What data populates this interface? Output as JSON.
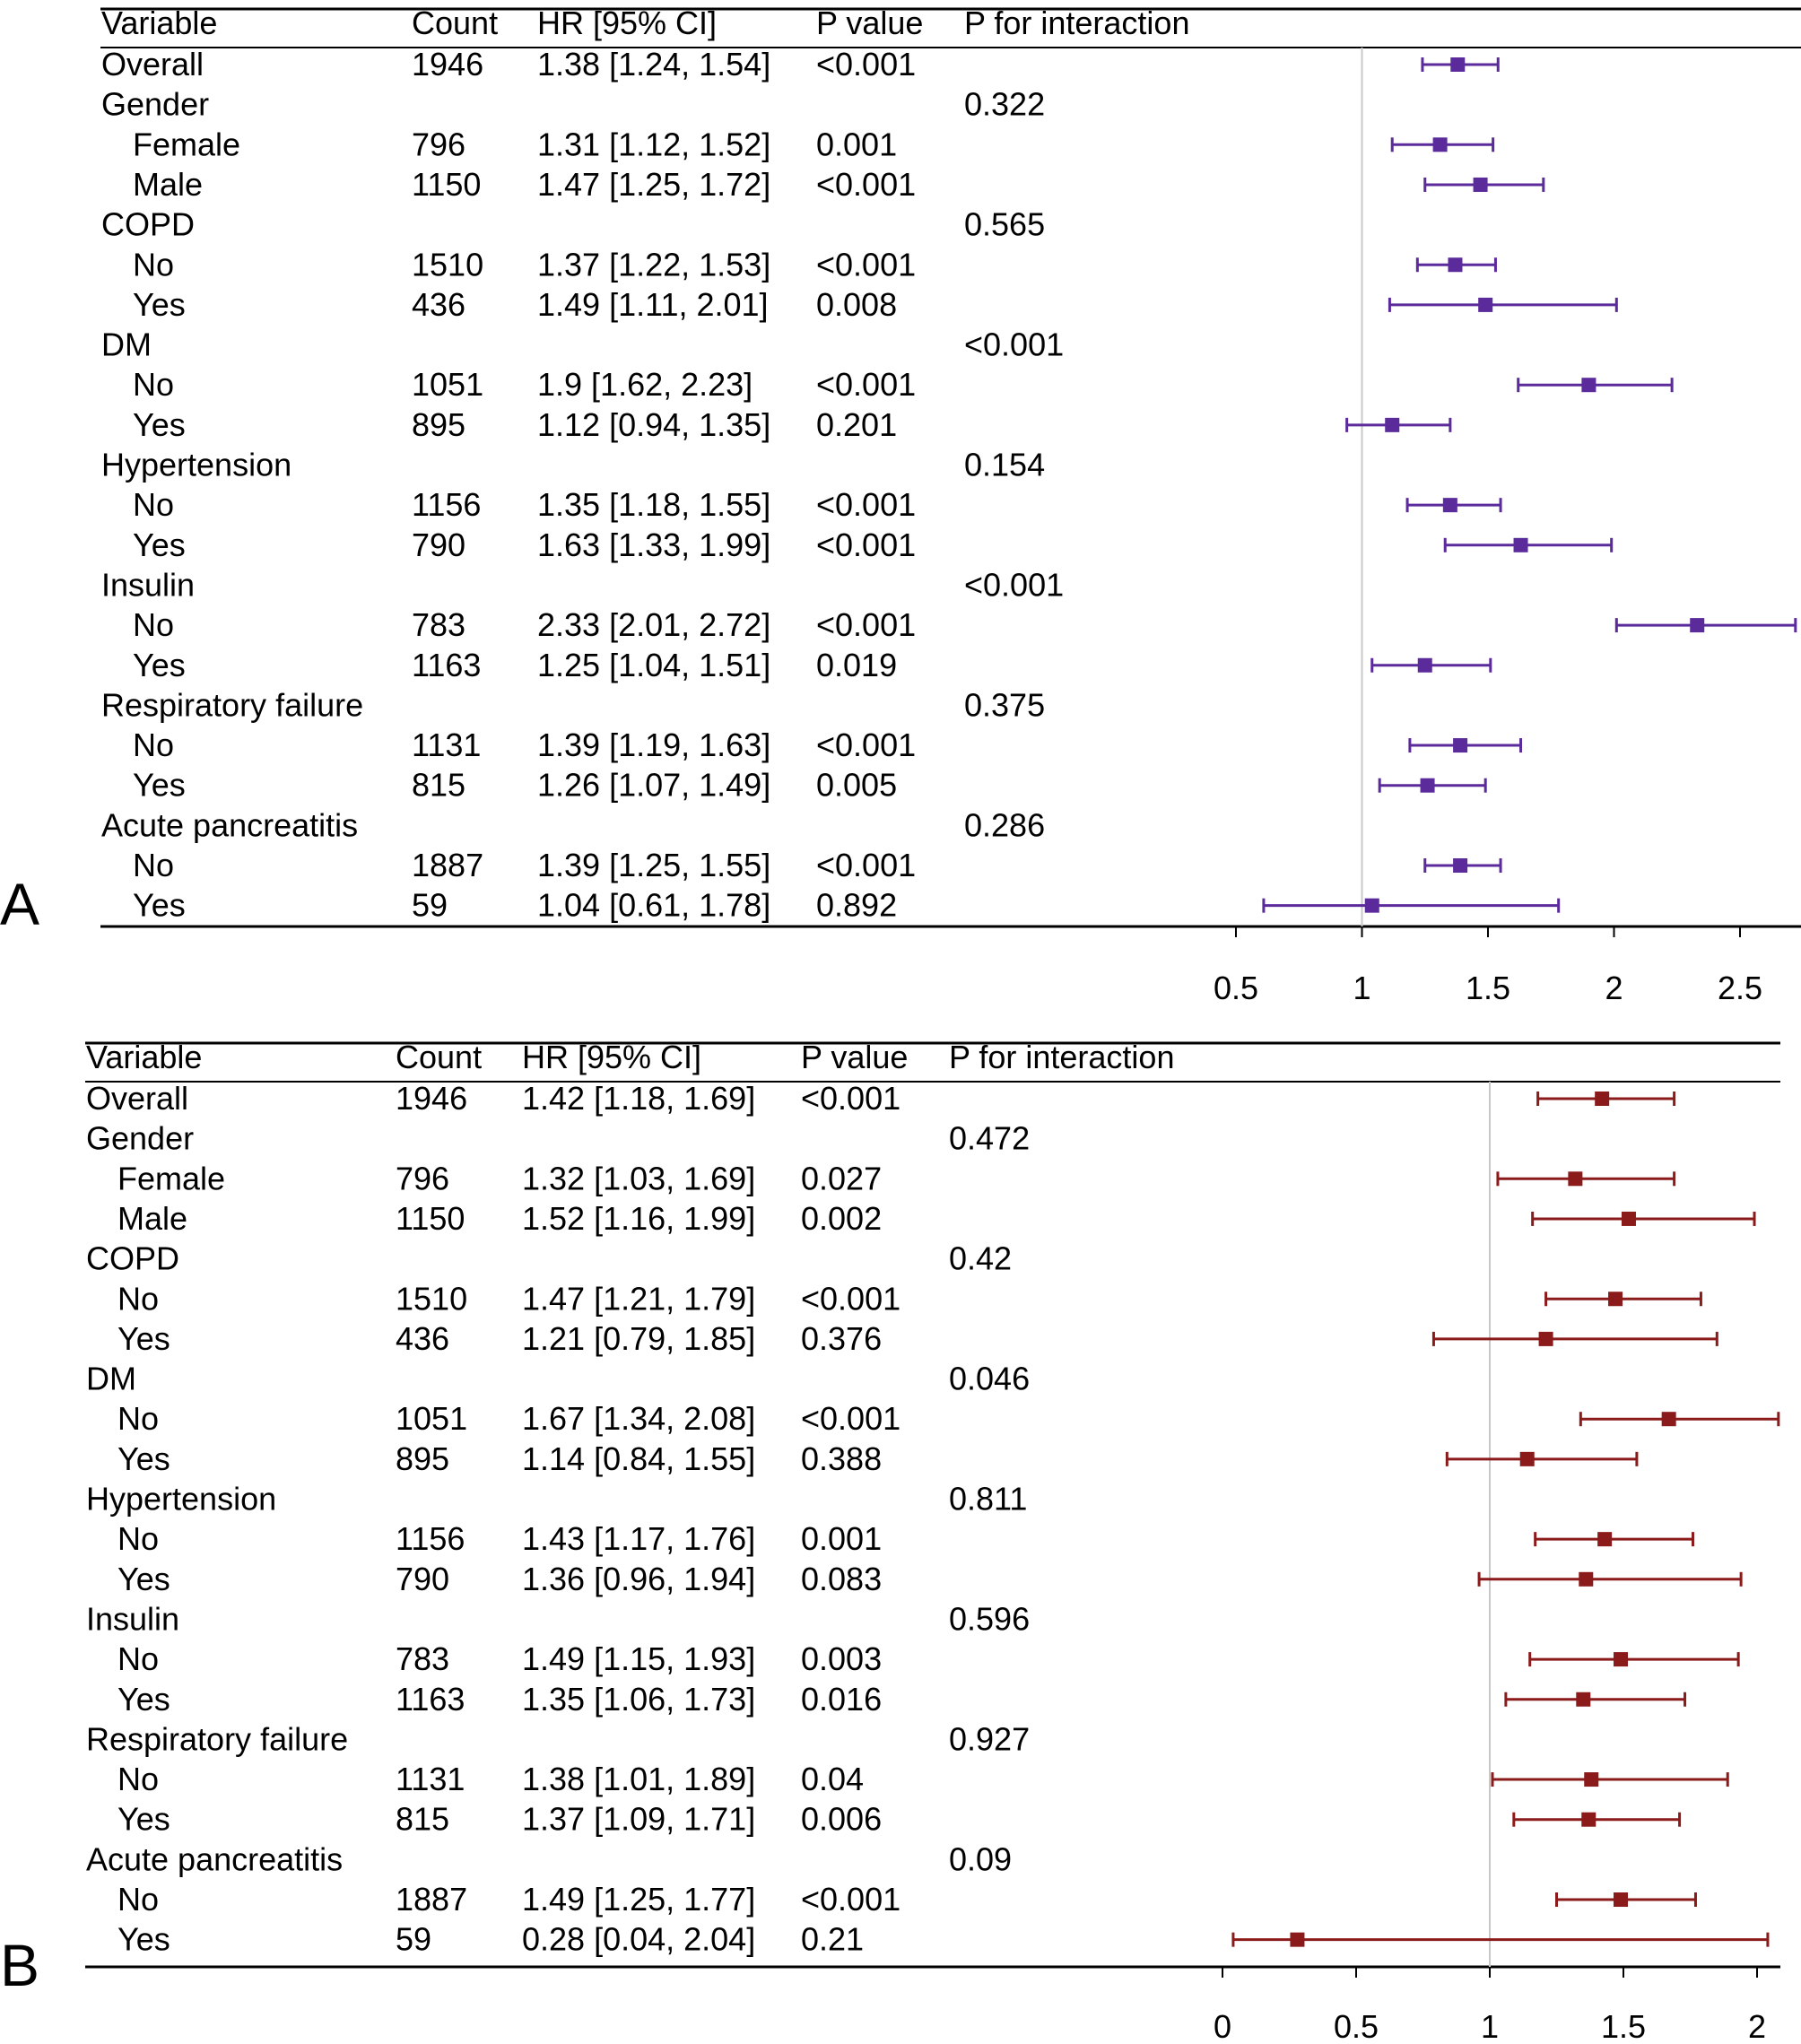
{
  "chart_data": [
    {
      "type": "forest",
      "panel_label": "A",
      "columns": [
        "Variable",
        "Count",
        "HR [95% CI]",
        "P value",
        "P for interaction"
      ],
      "reference_line": 1,
      "xlim": [
        0.5,
        2.75
      ],
      "ticks": [
        "0.5",
        "1",
        "1.5",
        "2",
        "2.5"
      ],
      "color": "#5B2A9B",
      "rows": [
        {
          "label": "Overall",
          "indent": false,
          "count": "1946",
          "hr_text": "1.38 [1.24, 1.54]",
          "p": "<0.001",
          "p_int": "",
          "hr": 1.38,
          "lo": 1.24,
          "hi": 1.54
        },
        {
          "label": "Gender",
          "indent": false,
          "count": "",
          "hr_text": "",
          "p": "",
          "p_int": "0.322"
        },
        {
          "label": "Female",
          "indent": true,
          "count": "796",
          "hr_text": "1.31 [1.12, 1.52]",
          "p": "0.001",
          "p_int": "",
          "hr": 1.31,
          "lo": 1.12,
          "hi": 1.52
        },
        {
          "label": "Male",
          "indent": true,
          "count": "1150",
          "hr_text": "1.47 [1.25, 1.72]",
          "p": "<0.001",
          "p_int": "",
          "hr": 1.47,
          "lo": 1.25,
          "hi": 1.72
        },
        {
          "label": "COPD",
          "indent": false,
          "count": "",
          "hr_text": "",
          "p": "",
          "p_int": "0.565"
        },
        {
          "label": "No",
          "indent": true,
          "count": "1510",
          "hr_text": "1.37 [1.22, 1.53]",
          "p": "<0.001",
          "p_int": "",
          "hr": 1.37,
          "lo": 1.22,
          "hi": 1.53
        },
        {
          "label": "Yes",
          "indent": true,
          "count": "436",
          "hr_text": "1.49 [1.11, 2.01]",
          "p": "0.008",
          "p_int": "",
          "hr": 1.49,
          "lo": 1.11,
          "hi": 2.01
        },
        {
          "label": "DM",
          "indent": false,
          "count": "",
          "hr_text": "",
          "p": "",
          "p_int": "<0.001"
        },
        {
          "label": "No",
          "indent": true,
          "count": "1051",
          "hr_text": "1.9 [1.62, 2.23]",
          "p": "<0.001",
          "p_int": "",
          "hr": 1.9,
          "lo": 1.62,
          "hi": 2.23
        },
        {
          "label": "Yes",
          "indent": true,
          "count": "895",
          "hr_text": "1.12 [0.94, 1.35]",
          "p": "0.201",
          "p_int": "",
          "hr": 1.12,
          "lo": 0.94,
          "hi": 1.35
        },
        {
          "label": "Hypertension",
          "indent": false,
          "count": "",
          "hr_text": "",
          "p": "",
          "p_int": "0.154"
        },
        {
          "label": "No",
          "indent": true,
          "count": "1156",
          "hr_text": "1.35 [1.18, 1.55]",
          "p": "<0.001",
          "p_int": "",
          "hr": 1.35,
          "lo": 1.18,
          "hi": 1.55
        },
        {
          "label": "Yes",
          "indent": true,
          "count": "790",
          "hr_text": "1.63 [1.33, 1.99]",
          "p": "<0.001",
          "p_int": "",
          "hr": 1.63,
          "lo": 1.33,
          "hi": 1.99
        },
        {
          "label": "Insulin",
          "indent": false,
          "count": "",
          "hr_text": "",
          "p": "",
          "p_int": "<0.001"
        },
        {
          "label": "No",
          "indent": true,
          "count": "783",
          "hr_text": "2.33 [2.01, 2.72]",
          "p": "<0.001",
          "p_int": "",
          "hr": 2.33,
          "lo": 2.01,
          "hi": 2.72
        },
        {
          "label": "Yes",
          "indent": true,
          "count": "1163",
          "hr_text": "1.25 [1.04, 1.51]",
          "p": "0.019",
          "p_int": "",
          "hr": 1.25,
          "lo": 1.04,
          "hi": 1.51
        },
        {
          "label": "Respiratory failure",
          "indent": false,
          "count": "",
          "hr_text": "",
          "p": "",
          "p_int": "0.375"
        },
        {
          "label": "No",
          "indent": true,
          "count": "1131",
          "hr_text": "1.39 [1.19, 1.63]",
          "p": "<0.001",
          "p_int": "",
          "hr": 1.39,
          "lo": 1.19,
          "hi": 1.63
        },
        {
          "label": "Yes",
          "indent": true,
          "count": "815",
          "hr_text": "1.26 [1.07, 1.49]",
          "p": "0.005",
          "p_int": "",
          "hr": 1.26,
          "lo": 1.07,
          "hi": 1.49
        },
        {
          "label": "Acute pancreatitis",
          "indent": false,
          "count": "",
          "hr_text": "",
          "p": "",
          "p_int": "0.286"
        },
        {
          "label": "No",
          "indent": true,
          "count": "1887",
          "hr_text": "1.39 [1.25, 1.55]",
          "p": "<0.001",
          "p_int": "",
          "hr": 1.39,
          "lo": 1.25,
          "hi": 1.55
        },
        {
          "label": "Yes",
          "indent": true,
          "count": "59",
          "hr_text": "1.04 [0.61, 1.78]",
          "p": "0.892",
          "p_int": "",
          "hr": 1.04,
          "lo": 0.61,
          "hi": 1.78
        }
      ]
    },
    {
      "type": "forest",
      "panel_label": "B",
      "columns": [
        "Variable",
        "Count",
        "HR [95% CI]",
        "P value",
        "P for interaction"
      ],
      "reference_line": 1,
      "xlim": [
        0,
        2.08
      ],
      "ticks": [
        "0",
        "0.5",
        "1",
        "1.5",
        "2"
      ],
      "color": "#8B1A1A",
      "rows": [
        {
          "label": "Overall",
          "indent": false,
          "count": "1946",
          "hr_text": "1.42 [1.18, 1.69]",
          "p": "<0.001",
          "p_int": "",
          "hr": 1.42,
          "lo": 1.18,
          "hi": 1.69
        },
        {
          "label": "Gender",
          "indent": false,
          "count": "",
          "hr_text": "",
          "p": "",
          "p_int": "0.472"
        },
        {
          "label": "Female",
          "indent": true,
          "count": "796",
          "hr_text": "1.32 [1.03, 1.69]",
          "p": "0.027",
          "p_int": "",
          "hr": 1.32,
          "lo": 1.03,
          "hi": 1.69
        },
        {
          "label": "Male",
          "indent": true,
          "count": "1150",
          "hr_text": "1.52 [1.16, 1.99]",
          "p": "0.002",
          "p_int": "",
          "hr": 1.52,
          "lo": 1.16,
          "hi": 1.99
        },
        {
          "label": "COPD",
          "indent": false,
          "count": "",
          "hr_text": "",
          "p": "",
          "p_int": "0.42"
        },
        {
          "label": "No",
          "indent": true,
          "count": "1510",
          "hr_text": "1.47 [1.21, 1.79]",
          "p": "<0.001",
          "p_int": "",
          "hr": 1.47,
          "lo": 1.21,
          "hi": 1.79
        },
        {
          "label": "Yes",
          "indent": true,
          "count": "436",
          "hr_text": "1.21 [0.79, 1.85]",
          "p": "0.376",
          "p_int": "",
          "hr": 1.21,
          "lo": 0.79,
          "hi": 1.85
        },
        {
          "label": "DM",
          "indent": false,
          "count": "",
          "hr_text": "",
          "p": "",
          "p_int": "0.046"
        },
        {
          "label": "No",
          "indent": true,
          "count": "1051",
          "hr_text": "1.67 [1.34, 2.08]",
          "p": "<0.001",
          "p_int": "",
          "hr": 1.67,
          "lo": 1.34,
          "hi": 2.08
        },
        {
          "label": "Yes",
          "indent": true,
          "count": "895",
          "hr_text": "1.14 [0.84, 1.55]",
          "p": "0.388",
          "p_int": "",
          "hr": 1.14,
          "lo": 0.84,
          "hi": 1.55
        },
        {
          "label": "Hypertension",
          "indent": false,
          "count": "",
          "hr_text": "",
          "p": "",
          "p_int": "0.811"
        },
        {
          "label": "No",
          "indent": true,
          "count": "1156",
          "hr_text": "1.43 [1.17, 1.76]",
          "p": "0.001",
          "p_int": "",
          "hr": 1.43,
          "lo": 1.17,
          "hi": 1.76
        },
        {
          "label": "Yes",
          "indent": true,
          "count": "790",
          "hr_text": "1.36 [0.96, 1.94]",
          "p": "0.083",
          "p_int": "",
          "hr": 1.36,
          "lo": 0.96,
          "hi": 1.94
        },
        {
          "label": "Insulin",
          "indent": false,
          "count": "",
          "hr_text": "",
          "p": "",
          "p_int": "0.596"
        },
        {
          "label": "No",
          "indent": true,
          "count": "783",
          "hr_text": "1.49 [1.15, 1.93]",
          "p": "0.003",
          "p_int": "",
          "hr": 1.49,
          "lo": 1.15,
          "hi": 1.93
        },
        {
          "label": "Yes",
          "indent": true,
          "count": "1163",
          "hr_text": "1.35 [1.06, 1.73]",
          "p": "0.016",
          "p_int": "",
          "hr": 1.35,
          "lo": 1.06,
          "hi": 1.73
        },
        {
          "label": "Respiratory failure",
          "indent": false,
          "count": "",
          "hr_text": "",
          "p": "",
          "p_int": "0.927"
        },
        {
          "label": "No",
          "indent": true,
          "count": "1131",
          "hr_text": "1.38 [1.01, 1.89]",
          "p": "0.04",
          "p_int": "",
          "hr": 1.38,
          "lo": 1.01,
          "hi": 1.89
        },
        {
          "label": "Yes",
          "indent": true,
          "count": "815",
          "hr_text": "1.37 [1.09, 1.71]",
          "p": "0.006",
          "p_int": "",
          "hr": 1.37,
          "lo": 1.09,
          "hi": 1.71
        },
        {
          "label": "Acute pancreatitis",
          "indent": false,
          "count": "",
          "hr_text": "",
          "p": "",
          "p_int": "0.09"
        },
        {
          "label": "No",
          "indent": true,
          "count": "1887",
          "hr_text": "1.49 [1.25, 1.77]",
          "p": "<0.001",
          "p_int": "",
          "hr": 1.49,
          "lo": 1.25,
          "hi": 1.77
        },
        {
          "label": "Yes",
          "indent": true,
          "count": "59",
          "hr_text": "0.28 [0.04, 2.04]",
          "p": "0.21",
          "p_int": "",
          "hr": 0.28,
          "lo": 0.04,
          "hi": 2.04
        }
      ]
    }
  ]
}
